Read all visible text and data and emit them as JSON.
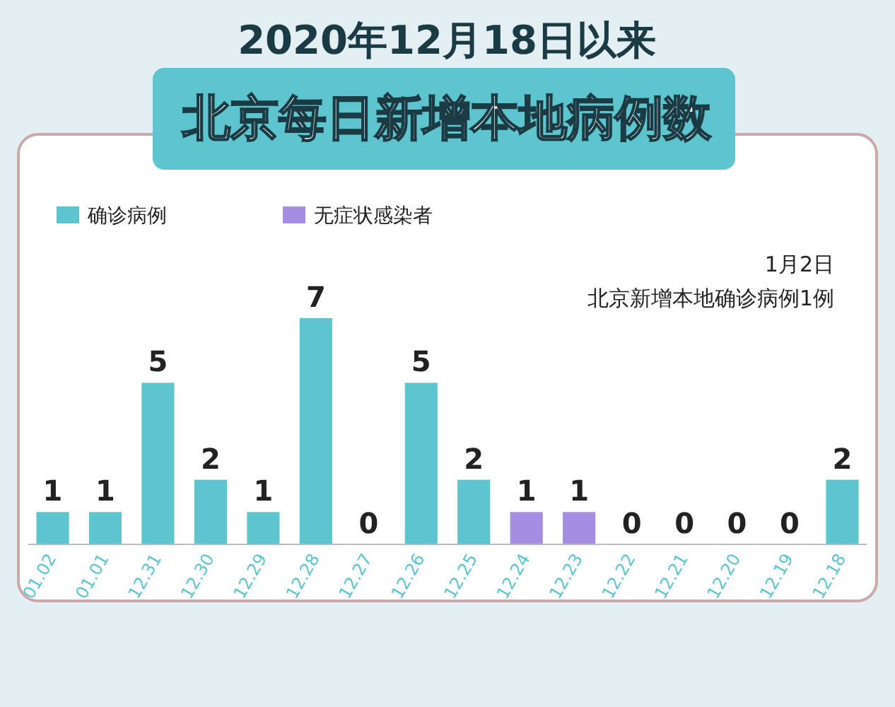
{
  "chart_data": {
    "type": "bar",
    "title": "2020年12月18日以来",
    "subtitle": "北京每日新增本地病例数",
    "categories": [
      "01.02",
      "01.01",
      "12.31",
      "12.30",
      "12.29",
      "12.28",
      "12.27",
      "12.26",
      "12.25",
      "12.24",
      "12.23",
      "12.22",
      "12.21",
      "12.20",
      "12.19",
      "12.18"
    ],
    "series": [
      {
        "name": "确诊病例",
        "color": "#5ec5cf",
        "values": [
          1,
          1,
          5,
          2,
          1,
          7,
          0,
          5,
          2,
          null,
          null,
          0,
          0,
          0,
          0,
          2
        ]
      },
      {
        "name": "无症状感染者",
        "color": "#a58ee0",
        "values": [
          null,
          null,
          null,
          null,
          null,
          null,
          null,
          null,
          null,
          1,
          1,
          null,
          null,
          null,
          null,
          null
        ]
      }
    ],
    "data_labels": true,
    "legend": "top left",
    "annotations": [
      "1月2日",
      "北京新增本地确诊病例1例"
    ]
  }
}
